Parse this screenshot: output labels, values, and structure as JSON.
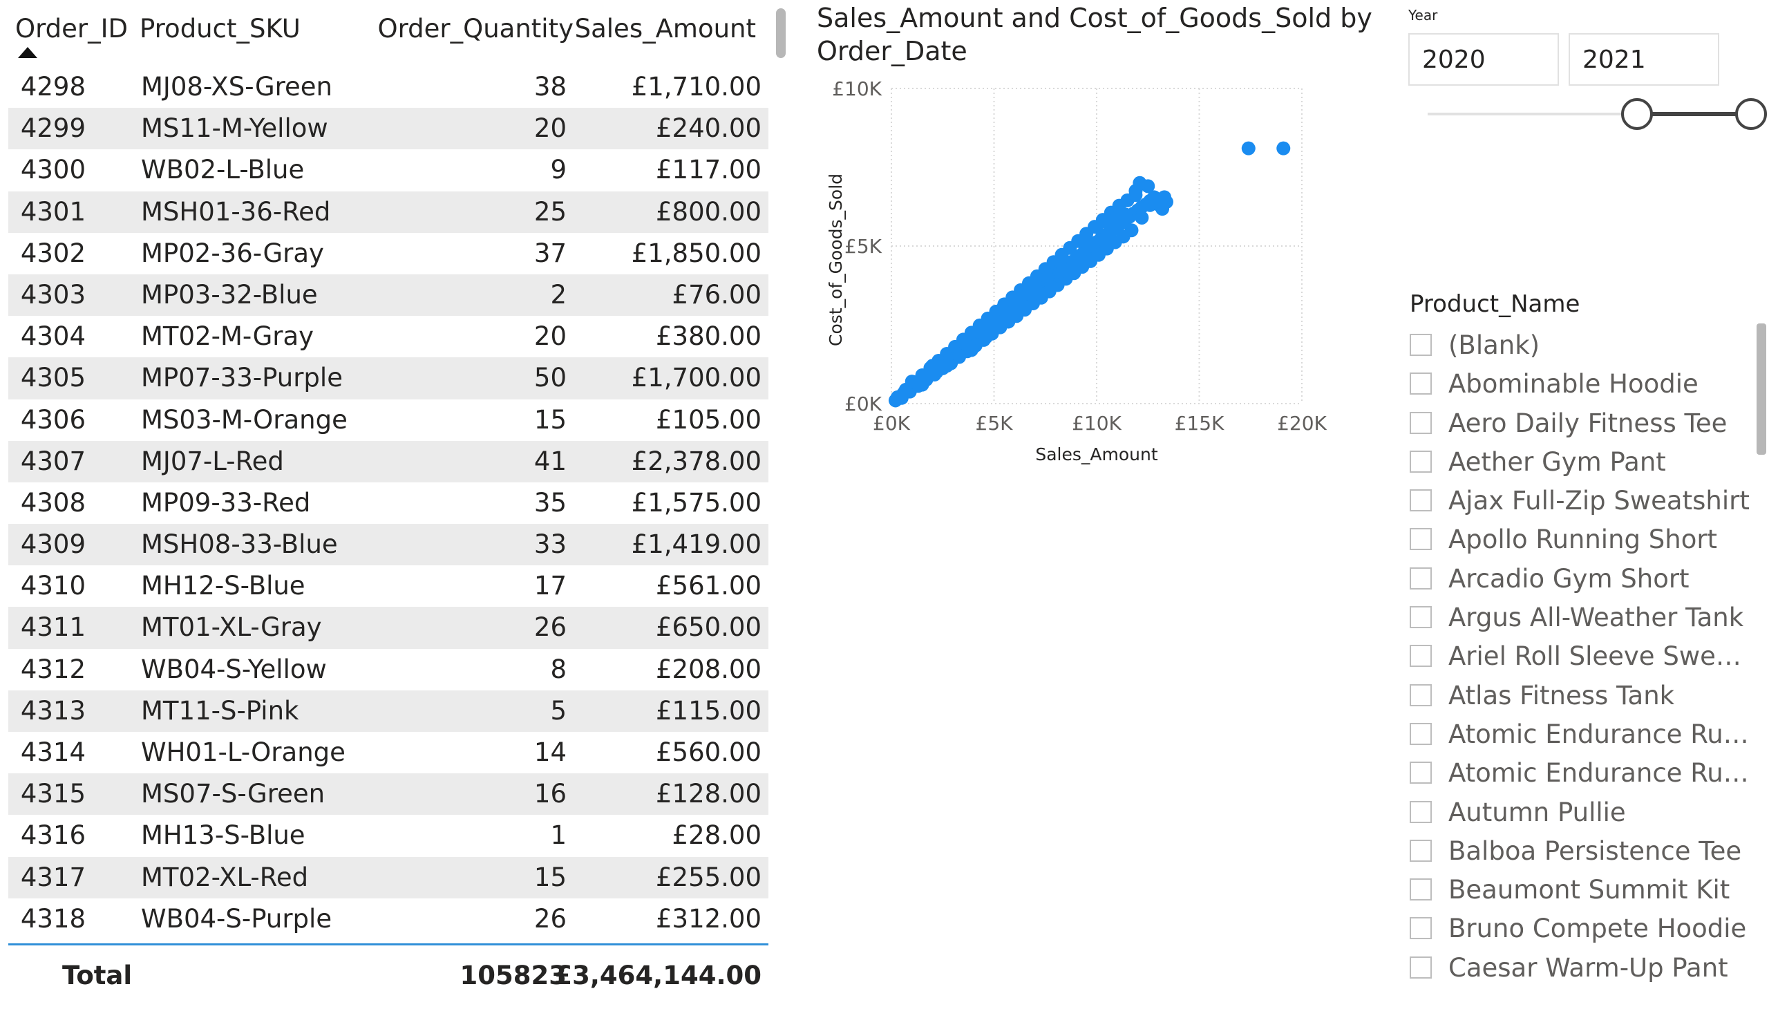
{
  "table": {
    "columns": {
      "order_id": "Order_ID",
      "product_sku": "Product_SKU",
      "order_quantity": "Order_Quantity",
      "sales_amount": "Sales_Amount"
    },
    "rows": [
      {
        "id": "4298",
        "sku": "MJ08-XS-Green",
        "qty": "38",
        "amt": "£1,710.00"
      },
      {
        "id": "4299",
        "sku": "MS11-M-Yellow",
        "qty": "20",
        "amt": "£240.00"
      },
      {
        "id": "4300",
        "sku": "WB02-L-Blue",
        "qty": "9",
        "amt": "£117.00"
      },
      {
        "id": "4301",
        "sku": "MSH01-36-Red",
        "qty": "25",
        "amt": "£800.00"
      },
      {
        "id": "4302",
        "sku": "MP02-36-Gray",
        "qty": "37",
        "amt": "£1,850.00"
      },
      {
        "id": "4303",
        "sku": "MP03-32-Blue",
        "qty": "2",
        "amt": "£76.00"
      },
      {
        "id": "4304",
        "sku": "MT02-M-Gray",
        "qty": "20",
        "amt": "£380.00"
      },
      {
        "id": "4305",
        "sku": "MP07-33-Purple",
        "qty": "50",
        "amt": "£1,700.00"
      },
      {
        "id": "4306",
        "sku": "MS03-M-Orange",
        "qty": "15",
        "amt": "£105.00"
      },
      {
        "id": "4307",
        "sku": "MJ07-L-Red",
        "qty": "41",
        "amt": "£2,378.00"
      },
      {
        "id": "4308",
        "sku": "MP09-33-Red",
        "qty": "35",
        "amt": "£1,575.00"
      },
      {
        "id": "4309",
        "sku": "MSH08-33-Blue",
        "qty": "33",
        "amt": "£1,419.00"
      },
      {
        "id": "4310",
        "sku": "MH12-S-Blue",
        "qty": "17",
        "amt": "£561.00"
      },
      {
        "id": "4311",
        "sku": "MT01-XL-Gray",
        "qty": "26",
        "amt": "£650.00"
      },
      {
        "id": "4312",
        "sku": "WB04-S-Yellow",
        "qty": "8",
        "amt": "£208.00"
      },
      {
        "id": "4313",
        "sku": "MT11-S-Pink",
        "qty": "5",
        "amt": "£115.00"
      },
      {
        "id": "4314",
        "sku": "WH01-L-Orange",
        "qty": "14",
        "amt": "£560.00"
      },
      {
        "id": "4315",
        "sku": "MS07-S-Green",
        "qty": "16",
        "amt": "£128.00"
      },
      {
        "id": "4316",
        "sku": "MH13-S-Blue",
        "qty": "1",
        "amt": "£28.00"
      },
      {
        "id": "4317",
        "sku": "MT02-XL-Red",
        "qty": "15",
        "amt": "£255.00"
      },
      {
        "id": "4318",
        "sku": "WB04-S-Purple",
        "qty": "26",
        "amt": "£312.00"
      }
    ],
    "total": {
      "label": "Total",
      "qty": "105823",
      "amt": "£3,464,144.00"
    },
    "accent_color": "#2f8fd8",
    "stripe_color": "#ebebeb"
  },
  "chart_data": {
    "type": "scatter",
    "title": "Sales_Amount and Cost_of_Goods_Sold by Order_Date",
    "xlabel": "Sales_Amount",
    "ylabel": "Cost_of_Goods_Sold",
    "xlim": [
      0,
      20000
    ],
    "ylim": [
      0,
      10000
    ],
    "x_ticks": [
      {
        "value": 0,
        "label": "£0K"
      },
      {
        "value": 5000,
        "label": "£5K"
      },
      {
        "value": 10000,
        "label": "£10K"
      },
      {
        "value": 15000,
        "label": "£15K"
      },
      {
        "value": 20000,
        "label": "£20K"
      }
    ],
    "y_ticks": [
      {
        "value": 0,
        "label": "£0K"
      },
      {
        "value": 5000,
        "label": "£5K"
      },
      {
        "value": 10000,
        "label": "£10K"
      }
    ],
    "grid": true,
    "point_color": "#1a8cf0",
    "points": [
      [
        200,
        100
      ],
      [
        400,
        220
      ],
      [
        600,
        330
      ],
      [
        800,
        420
      ],
      [
        1000,
        530
      ],
      [
        1200,
        640
      ],
      [
        1400,
        720
      ],
      [
        1600,
        830
      ],
      [
        1800,
        920
      ],
      [
        2000,
        1030
      ],
      [
        2200,
        1120
      ],
      [
        2400,
        1240
      ],
      [
        2600,
        1330
      ],
      [
        2800,
        1420
      ],
      [
        3000,
        1540
      ],
      [
        3200,
        1640
      ],
      [
        3400,
        1740
      ],
      [
        3600,
        1850
      ],
      [
        3800,
        1950
      ],
      [
        4000,
        2050
      ],
      [
        4200,
        2170
      ],
      [
        4400,
        2260
      ],
      [
        4600,
        2370
      ],
      [
        4800,
        2470
      ],
      [
        5000,
        2560
      ],
      [
        5200,
        2680
      ],
      [
        5400,
        2760
      ],
      [
        5600,
        2880
      ],
      [
        5800,
        2980
      ],
      [
        6000,
        3080
      ],
      [
        6200,
        3160
      ],
      [
        6400,
        3290
      ],
      [
        6600,
        3380
      ],
      [
        6800,
        3470
      ],
      [
        7000,
        3580
      ],
      [
        7200,
        3700
      ],
      [
        7400,
        3780
      ],
      [
        7600,
        3870
      ],
      [
        7800,
        3990
      ],
      [
        8000,
        4090
      ],
      [
        8200,
        4200
      ],
      [
        8400,
        4300
      ],
      [
        8600,
        4390
      ],
      [
        8800,
        4500
      ],
      [
        9000,
        4600
      ],
      [
        9200,
        4700
      ],
      [
        9400,
        4820
      ],
      [
        9600,
        4900
      ],
      [
        9800,
        5000
      ],
      [
        10000,
        5120
      ],
      [
        10200,
        5220
      ],
      [
        10400,
        5330
      ],
      [
        10600,
        5420
      ],
      [
        10800,
        5520
      ],
      [
        11000,
        5620
      ],
      [
        11200,
        5720
      ],
      [
        11400,
        5840
      ],
      [
        11600,
        5930
      ],
      [
        11800,
        6030
      ],
      [
        12000,
        6130
      ],
      [
        12200,
        6240
      ],
      [
        12400,
        6320
      ],
      [
        12600,
        6430
      ],
      [
        12800,
        6520
      ],
      [
        13000,
        6320
      ],
      [
        13200,
        6180
      ],
      [
        13400,
        6400
      ],
      [
        500,
        180
      ],
      [
        900,
        380
      ],
      [
        1300,
        560
      ],
      [
        1700,
        760
      ],
      [
        2100,
        920
      ],
      [
        2500,
        1120
      ],
      [
        2900,
        1280
      ],
      [
        3300,
        1480
      ],
      [
        3700,
        1660
      ],
      [
        4100,
        1840
      ],
      [
        4500,
        2020
      ],
      [
        4900,
        2220
      ],
      [
        5300,
        2420
      ],
      [
        5700,
        2600
      ],
      [
        6100,
        2780
      ],
      [
        6500,
        2980
      ],
      [
        6900,
        3180
      ],
      [
        7300,
        3360
      ],
      [
        7700,
        3560
      ],
      [
        8100,
        3760
      ],
      [
        8500,
        3960
      ],
      [
        8900,
        4140
      ],
      [
        9300,
        4340
      ],
      [
        9700,
        4520
      ],
      [
        10100,
        4720
      ],
      [
        10500,
        4920
      ],
      [
        10900,
        5120
      ],
      [
        11300,
        5300
      ],
      [
        11700,
        5500
      ],
      [
        300,
        200
      ],
      [
        700,
        440
      ],
      [
        1100,
        680
      ],
      [
        1500,
        900
      ],
      [
        1900,
        1130
      ],
      [
        2300,
        1360
      ],
      [
        2700,
        1580
      ],
      [
        3100,
        1800
      ],
      [
        3500,
        2030
      ],
      [
        3900,
        2250
      ],
      [
        4300,
        2480
      ],
      [
        4700,
        2700
      ],
      [
        5100,
        2920
      ],
      [
        5500,
        3150
      ],
      [
        5900,
        3370
      ],
      [
        6300,
        3600
      ],
      [
        6700,
        3820
      ],
      [
        7100,
        4040
      ],
      [
        7500,
        4270
      ],
      [
        7900,
        4490
      ],
      [
        8300,
        4720
      ],
      [
        8700,
        4940
      ],
      [
        9100,
        5160
      ],
      [
        9500,
        5390
      ],
      [
        9900,
        5610
      ],
      [
        10300,
        5830
      ],
      [
        10700,
        6060
      ],
      [
        11100,
        6280
      ],
      [
        11500,
        6450
      ],
      [
        11900,
        6620
      ],
      [
        12500,
        6900
      ],
      [
        12100,
        7000
      ],
      [
        11900,
        6750
      ],
      [
        12800,
        6550
      ],
      [
        13300,
        6550
      ],
      [
        13000,
        6450
      ],
      [
        12600,
        6300
      ],
      [
        2000,
        1200
      ],
      [
        2400,
        1300
      ],
      [
        3000,
        1400
      ],
      [
        3600,
        1900
      ],
      [
        4200,
        2300
      ],
      [
        4800,
        2600
      ],
      [
        5400,
        3000
      ],
      [
        6000,
        3300
      ],
      [
        6600,
        3500
      ],
      [
        7000,
        3800
      ],
      [
        7600,
        4000
      ],
      [
        8200,
        4500
      ],
      [
        8800,
        4300
      ],
      [
        9400,
        5200
      ],
      [
        10000,
        5600
      ],
      [
        10600,
        5700
      ],
      [
        1000,
        700
      ],
      [
        1500,
        600
      ],
      [
        2200,
        1000
      ],
      [
        2700,
        1200
      ],
      [
        3300,
        1500
      ],
      [
        3900,
        1700
      ],
      [
        4600,
        2100
      ],
      [
        5200,
        2500
      ],
      [
        5900,
        2900
      ],
      [
        6400,
        3100
      ],
      [
        7200,
        3500
      ],
      [
        7800,
        3700
      ],
      [
        8500,
        4200
      ],
      [
        9200,
        4600
      ],
      [
        9600,
        5000
      ],
      [
        10300,
        5200
      ],
      [
        10800,
        5800
      ],
      [
        11400,
        6000
      ],
      [
        12200,
        5900
      ],
      [
        11000,
        5900
      ],
      [
        17400,
        8100
      ],
      [
        19100,
        8100
      ]
    ]
  },
  "year_slicer": {
    "label": "Year",
    "from_value": "2020",
    "to_value": "2021",
    "range_start": 0.62,
    "range_end": 1.0
  },
  "product_slicer": {
    "title": "Product_Name",
    "items": [
      "(Blank)",
      "Abominable Hoodie",
      "Aero Daily Fitness Tee",
      "Aether Gym Pant",
      "Ajax Full-Zip Sweatshirt",
      "Apollo Running Short",
      "Arcadio Gym Short",
      "Argus All-Weather Tank",
      "Ariel Roll Sleeve Sweats...",
      "Atlas Fitness Tank",
      "Atomic Endurance Runn...",
      "Atomic Endurance Runn...",
      "Autumn Pullie",
      "Balboa Persistence Tee",
      "Beaumont Summit Kit",
      "Bruno Compete Hoodie",
      "Caesar Warm-Up Pant"
    ]
  }
}
